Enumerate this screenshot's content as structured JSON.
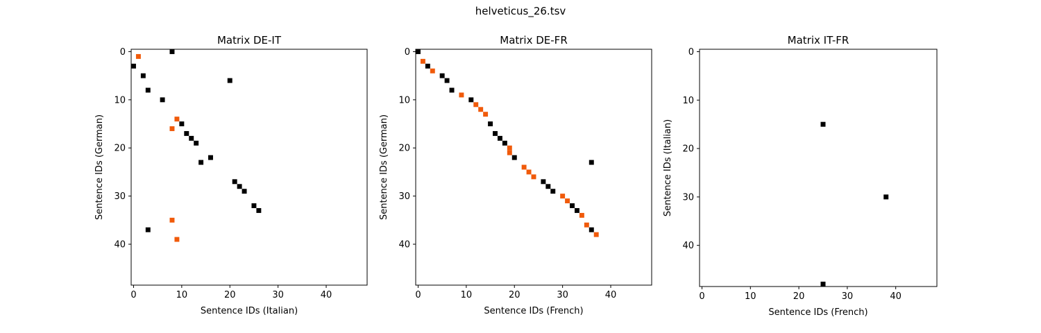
{
  "figure_title": "helveticus_26.tsv",
  "colors": {
    "black": "#000000",
    "orange": "#f05a0a"
  },
  "chart_data": [
    {
      "type": "heatmap",
      "title": "Matrix DE-IT",
      "xlabel": "Sentence IDs (Italian)",
      "ylabel": "Sentence IDs (German)",
      "xlim": [
        -0.5,
        48.5
      ],
      "ylim": [
        48.5,
        -0.5
      ],
      "xticks": [
        "0",
        "10",
        "20",
        "30",
        "40"
      ],
      "yticks": [
        "0",
        "10",
        "20",
        "30",
        "40"
      ],
      "grid": false,
      "cells": [
        {
          "x": 8,
          "y": 0,
          "c": "black"
        },
        {
          "x": 1,
          "y": 1,
          "c": "orange"
        },
        {
          "x": 0,
          "y": 3,
          "c": "black"
        },
        {
          "x": 2,
          "y": 5,
          "c": "black"
        },
        {
          "x": 20,
          "y": 6,
          "c": "black"
        },
        {
          "x": 3,
          "y": 8,
          "c": "black"
        },
        {
          "x": 6,
          "y": 10,
          "c": "black"
        },
        {
          "x": 9,
          "y": 14,
          "c": "orange"
        },
        {
          "x": 10,
          "y": 15,
          "c": "black"
        },
        {
          "x": 8,
          "y": 16,
          "c": "orange"
        },
        {
          "x": 11,
          "y": 17,
          "c": "black"
        },
        {
          "x": 12,
          "y": 18,
          "c": "black"
        },
        {
          "x": 13,
          "y": 19,
          "c": "black"
        },
        {
          "x": 16,
          "y": 22,
          "c": "black"
        },
        {
          "x": 14,
          "y": 23,
          "c": "black"
        },
        {
          "x": 21,
          "y": 27,
          "c": "black"
        },
        {
          "x": 22,
          "y": 28,
          "c": "black"
        },
        {
          "x": 23,
          "y": 29,
          "c": "black"
        },
        {
          "x": 25,
          "y": 32,
          "c": "black"
        },
        {
          "x": 26,
          "y": 33,
          "c": "black"
        },
        {
          "x": 8,
          "y": 35,
          "c": "orange"
        },
        {
          "x": 3,
          "y": 37,
          "c": "black"
        },
        {
          "x": 9,
          "y": 39,
          "c": "orange"
        }
      ]
    },
    {
      "type": "heatmap",
      "title": "Matrix DE-FR",
      "xlabel": "Sentence IDs (French)",
      "ylabel": "Sentence IDs (German)",
      "xlim": [
        -0.5,
        48.5
      ],
      "ylim": [
        48.5,
        -0.5
      ],
      "xticks": [
        "0",
        "10",
        "20",
        "30",
        "40"
      ],
      "yticks": [
        "0",
        "10",
        "20",
        "30",
        "40"
      ],
      "grid": false,
      "cells": [
        {
          "x": 0,
          "y": 0,
          "c": "black"
        },
        {
          "x": 1,
          "y": 2,
          "c": "orange"
        },
        {
          "x": 2,
          "y": 3,
          "c": "black"
        },
        {
          "x": 3,
          "y": 4,
          "c": "orange"
        },
        {
          "x": 5,
          "y": 5,
          "c": "black"
        },
        {
          "x": 6,
          "y": 6,
          "c": "black"
        },
        {
          "x": 7,
          "y": 8,
          "c": "black"
        },
        {
          "x": 9,
          "y": 9,
          "c": "orange"
        },
        {
          "x": 11,
          "y": 10,
          "c": "black"
        },
        {
          "x": 12,
          "y": 11,
          "c": "orange"
        },
        {
          "x": 13,
          "y": 12,
          "c": "orange"
        },
        {
          "x": 14,
          "y": 13,
          "c": "orange"
        },
        {
          "x": 15,
          "y": 15,
          "c": "black"
        },
        {
          "x": 16,
          "y": 17,
          "c": "black"
        },
        {
          "x": 17,
          "y": 18,
          "c": "black"
        },
        {
          "x": 18,
          "y": 19,
          "c": "black"
        },
        {
          "x": 19,
          "y": 20,
          "c": "orange"
        },
        {
          "x": 19,
          "y": 21,
          "c": "orange"
        },
        {
          "x": 20,
          "y": 22,
          "c": "black"
        },
        {
          "x": 36,
          "y": 23,
          "c": "black"
        },
        {
          "x": 22,
          "y": 24,
          "c": "orange"
        },
        {
          "x": 23,
          "y": 25,
          "c": "orange"
        },
        {
          "x": 24,
          "y": 26,
          "c": "orange"
        },
        {
          "x": 26,
          "y": 27,
          "c": "black"
        },
        {
          "x": 27,
          "y": 28,
          "c": "black"
        },
        {
          "x": 28,
          "y": 29,
          "c": "black"
        },
        {
          "x": 30,
          "y": 30,
          "c": "orange"
        },
        {
          "x": 31,
          "y": 31,
          "c": "orange"
        },
        {
          "x": 32,
          "y": 32,
          "c": "black"
        },
        {
          "x": 33,
          "y": 33,
          "c": "black"
        },
        {
          "x": 34,
          "y": 34,
          "c": "orange"
        },
        {
          "x": 35,
          "y": 36,
          "c": "orange"
        },
        {
          "x": 36,
          "y": 37,
          "c": "black"
        },
        {
          "x": 37,
          "y": 38,
          "c": "orange"
        }
      ]
    },
    {
      "type": "heatmap",
      "title": "Matrix IT-FR",
      "xlabel": "Sentence IDs (French)",
      "ylabel": "Sentence IDs (Italian)",
      "xlim": [
        -0.5,
        48.5
      ],
      "ylim": [
        48.5,
        -0.5
      ],
      "xticks": [
        "0",
        "10",
        "20",
        "30",
        "40"
      ],
      "yticks": [
        "0",
        "10",
        "20",
        "30",
        "40"
      ],
      "grid": false,
      "cells": [
        {
          "x": 25,
          "y": 15,
          "c": "black"
        },
        {
          "x": 38,
          "y": 30,
          "c": "black"
        },
        {
          "x": 25,
          "y": 48,
          "c": "black"
        }
      ]
    }
  ]
}
